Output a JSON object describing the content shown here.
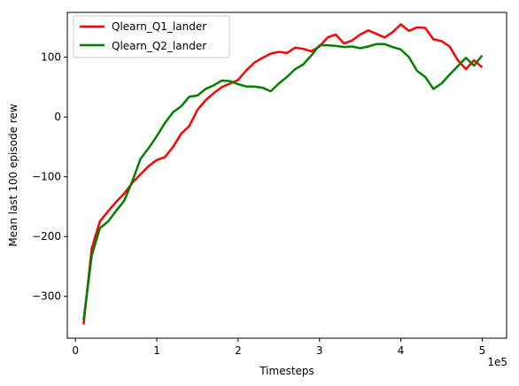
{
  "chart_data": {
    "type": "line",
    "title": "",
    "xlabel": "Timesteps",
    "ylabel": "Mean last 100 episode rew",
    "x_offset_label": "1e5",
    "xlim": [
      -0.1,
      5.3
    ],
    "ylim": [
      -370,
      175
    ],
    "x_ticks": [
      0,
      1,
      2,
      3,
      4,
      5
    ],
    "x_tick_labels": [
      "0",
      "1",
      "2",
      "3",
      "4",
      "5"
    ],
    "y_ticks": [
      -300,
      -200,
      -100,
      0,
      100
    ],
    "y_tick_labels": [
      "−300",
      "−200",
      "−100",
      "0",
      "100"
    ],
    "grid": false,
    "legend_position": "top-left",
    "x": [
      0.1,
      0.2,
      0.3,
      0.4,
      0.5,
      0.6,
      0.7,
      0.8,
      0.9,
      1.0,
      1.1,
      1.2,
      1.3,
      1.4,
      1.5,
      1.6,
      1.7,
      1.8,
      1.9,
      2.0,
      2.1,
      2.2,
      2.3,
      2.4,
      2.5,
      2.6,
      2.7,
      2.8,
      2.9,
      3.0,
      3.1,
      3.2,
      3.3,
      3.4,
      3.5,
      3.6,
      3.7,
      3.8,
      3.9,
      4.0,
      4.1,
      4.2,
      4.3,
      4.4,
      4.5,
      4.6,
      4.7,
      4.8,
      4.9,
      5.0
    ],
    "series": [
      {
        "name": "Qlearn_Q1_lander",
        "color": "#ff0000",
        "values": [
          -347,
          -220,
          -175,
          -158,
          -142,
          -128,
          -110,
          -96,
          -82,
          -72,
          -67,
          -50,
          -28,
          -15,
          12,
          28,
          40,
          50,
          56,
          62,
          78,
          91,
          99,
          106,
          109,
          107,
          116,
          114,
          110,
          118,
          133,
          138,
          123,
          128,
          138,
          145,
          139,
          133,
          142,
          155,
          144,
          150,
          149,
          130,
          127,
          118,
          95,
          80,
          95,
          83
        ]
      },
      {
        "name": "Qlearn_Q2_lander",
        "color": "#008000",
        "values": [
          -340,
          -232,
          -186,
          -175,
          -157,
          -140,
          -107,
          -70,
          -52,
          -32,
          -10,
          8,
          18,
          34,
          36,
          47,
          53,
          61,
          60,
          55,
          51,
          51,
          49,
          43,
          56,
          67,
          80,
          88,
          103,
          120,
          120,
          119,
          117,
          118,
          115,
          118,
          122,
          122,
          117,
          113,
          100,
          77,
          67,
          47,
          56,
          71,
          85,
          99,
          86,
          103
        ]
      }
    ]
  }
}
